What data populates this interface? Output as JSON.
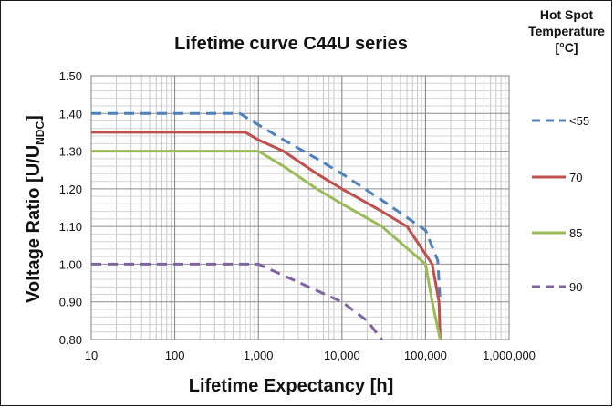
{
  "chart_data": {
    "type": "line",
    "title": "Lifetime curve C44U series",
    "xlabel": "Lifetime Expectancy  [h]",
    "ylabel": {
      "main": "Voltage Ratio [U/U",
      "sub": "NDC",
      "end": "]"
    },
    "x_scale": "log",
    "xlim": [
      10,
      1000000
    ],
    "ylim": [
      0.8,
      1.5
    ],
    "x_ticks": [
      10,
      100,
      1000,
      10000,
      100000,
      1000000
    ],
    "x_tick_labels": [
      "10",
      "100",
      "1,000",
      "10,000",
      "100,000",
      "1,000,000"
    ],
    "y_ticks": [
      0.8,
      0.9,
      1.0,
      1.1,
      1.2,
      1.3,
      1.4,
      1.5
    ],
    "y_tick_labels": [
      "0.80",
      "0.90",
      "1.00",
      "1.10",
      "1.20",
      "1.30",
      "1.40",
      "1.50"
    ],
    "grid": true,
    "legend": {
      "title_lines": [
        "Hot Spot",
        "Temperature",
        "[°C]"
      ],
      "placement": "right"
    },
    "series": [
      {
        "name": "<55",
        "color": "#4f81bd",
        "dash": "dashed",
        "points": [
          [
            10,
            1.4
          ],
          [
            600,
            1.4
          ],
          [
            1000,
            1.37
          ],
          [
            2000,
            1.33
          ],
          [
            5000,
            1.28
          ],
          [
            10000,
            1.24
          ],
          [
            30000,
            1.17
          ],
          [
            100000,
            1.09
          ],
          [
            140000,
            1.01
          ],
          [
            150000,
            0.9
          ]
        ]
      },
      {
        "name": "70",
        "color": "#c0504d",
        "dash": "solid",
        "points": [
          [
            10,
            1.35
          ],
          [
            700,
            1.35
          ],
          [
            1000,
            1.33
          ],
          [
            2000,
            1.3
          ],
          [
            5000,
            1.24
          ],
          [
            10000,
            1.2
          ],
          [
            30000,
            1.14
          ],
          [
            60000,
            1.1
          ],
          [
            120000,
            1.0
          ],
          [
            145000,
            0.9
          ],
          [
            150000,
            0.8
          ]
        ]
      },
      {
        "name": "85",
        "color": "#9bbb59",
        "dash": "solid",
        "points": [
          [
            10,
            1.3
          ],
          [
            1000,
            1.3
          ],
          [
            2000,
            1.26
          ],
          [
            5000,
            1.2
          ],
          [
            10000,
            1.16
          ],
          [
            30000,
            1.1
          ],
          [
            100000,
            1.0
          ],
          [
            120000,
            0.9
          ],
          [
            150000,
            0.8
          ]
        ]
      },
      {
        "name": "90",
        "color": "#8064a2",
        "dash": "dashed",
        "points": [
          [
            10,
            1.0
          ],
          [
            1000,
            1.0
          ],
          [
            2000,
            0.97
          ],
          [
            5000,
            0.93
          ],
          [
            10000,
            0.9
          ],
          [
            20000,
            0.85
          ],
          [
            30000,
            0.8
          ]
        ]
      }
    ]
  }
}
